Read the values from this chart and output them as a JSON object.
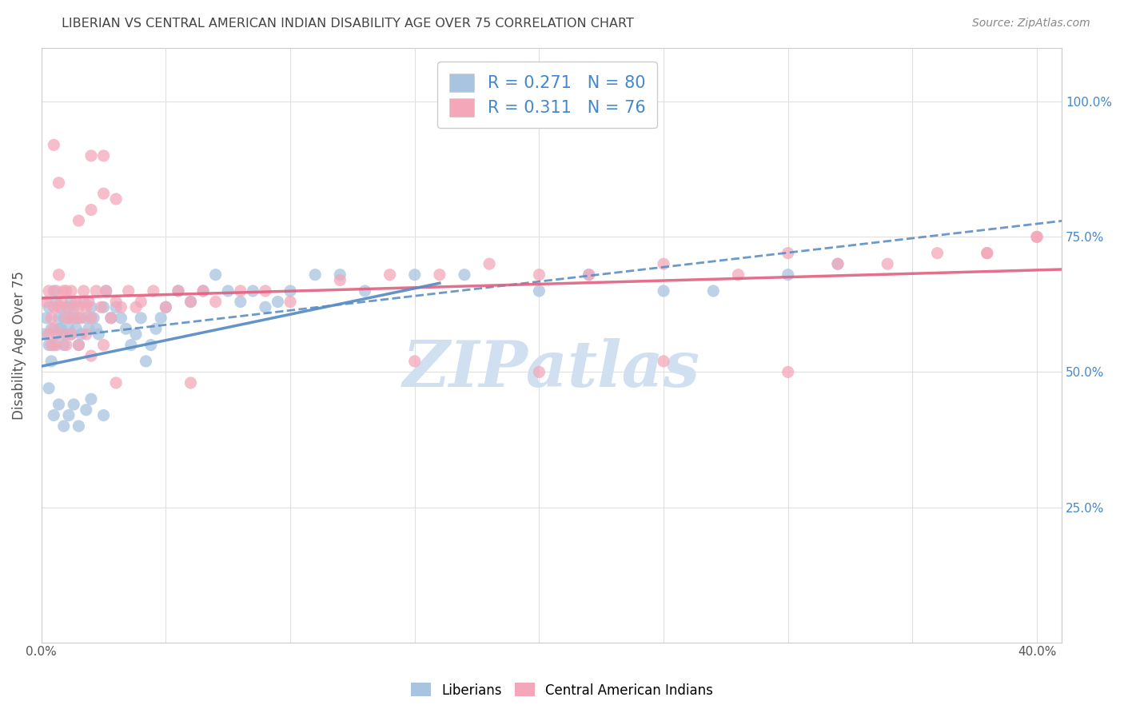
{
  "title": "LIBERIAN VS CENTRAL AMERICAN INDIAN DISABILITY AGE OVER 75 CORRELATION CHART",
  "source": "Source: ZipAtlas.com",
  "ylabel": "Disability Age Over 75",
  "xlim": [
    0.0,
    0.41
  ],
  "ylim": [
    0.0,
    1.1
  ],
  "x_tick_positions": [
    0.0,
    0.05,
    0.1,
    0.15,
    0.2,
    0.25,
    0.3,
    0.35,
    0.4
  ],
  "x_tick_labels": [
    "0.0%",
    "",
    "",
    "",
    "",
    "",
    "",
    "",
    "40.0%"
  ],
  "y_tick_positions": [
    0.0,
    0.25,
    0.5,
    0.75,
    1.0
  ],
  "y_tick_labels_right": [
    "",
    "25.0%",
    "50.0%",
    "75.0%",
    "100.0%"
  ],
  "liberian_color": "#a8c4e0",
  "central_color": "#f4a7b9",
  "liberian_line_color": "#5b8ec4",
  "central_line_color": "#e06080",
  "liberian_dashed_color": "#8ab4d8",
  "R_liberian": 0.271,
  "N_liberian": 80,
  "R_central": 0.311,
  "N_central": 76,
  "watermark": "ZIPatlas",
  "watermark_color": "#d0e0f0",
  "background_color": "#ffffff",
  "grid_color": "#e0e0e0",
  "right_axis_color": "#4488cc",
  "title_color": "#444444",
  "source_color": "#888888"
}
